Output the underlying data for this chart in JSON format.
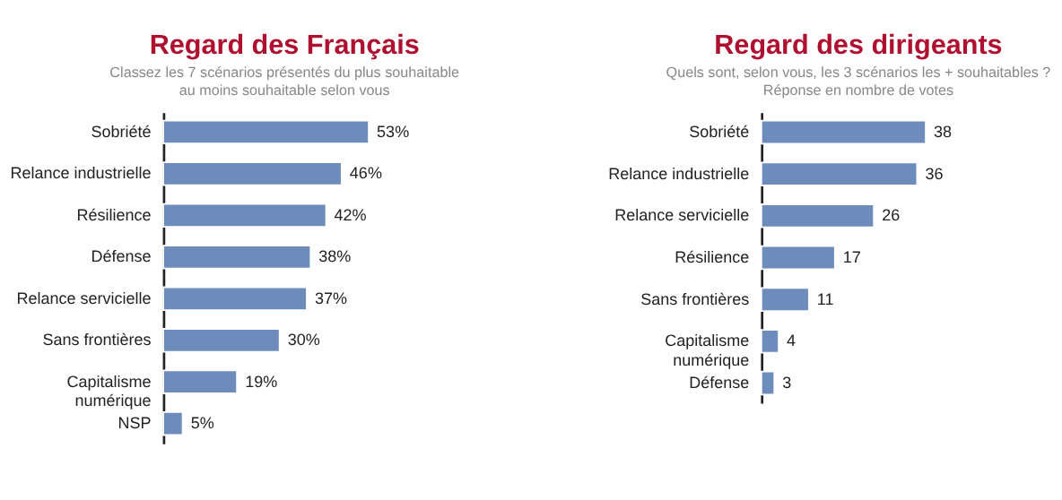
{
  "chart_data": [
    {
      "type": "bar",
      "orientation": "horizontal",
      "title": "Regard des Français",
      "subtitle": [
        "Classez les 7 scénarios présentés du plus souhaitable",
        "au moins souhaitable selon vous"
      ],
      "categories": [
        "Sobriété",
        "Relance industrielle",
        "Résilience",
        "Défense",
        "Relance servicielle",
        "Sans frontières",
        "Capitalisme numérique",
        "NSP"
      ],
      "values": [
        53,
        46,
        42,
        38,
        37,
        30,
        19,
        5
      ],
      "color": "#6d8cbb",
      "value_labels": [
        "53%",
        "46%",
        "42%",
        "38%",
        "37%",
        "30%",
        "19%",
        "5%"
      ],
      "grid": false,
      "legend": false
    },
    {
      "type": "bar",
      "orientation": "horizontal",
      "title": "Regard des dirigeants",
      "subtitle": [
        "Quels sont, selon vous, les 3 scénarios les + souhaitables  ?",
        "Réponse en nombre de votes"
      ],
      "categories": [
        "Sobriété",
        "Relance industrielle",
        "Relance servicielle",
        "Résilience",
        "Sans frontières",
        "Capitalisme numérique",
        "Défense"
      ],
      "values": [
        38,
        36,
        26,
        17,
        11,
        4,
        3
      ],
      "color": "#6d8cbb",
      "data_labels": true,
      "grid": false,
      "legend": false
    }
  ]
}
